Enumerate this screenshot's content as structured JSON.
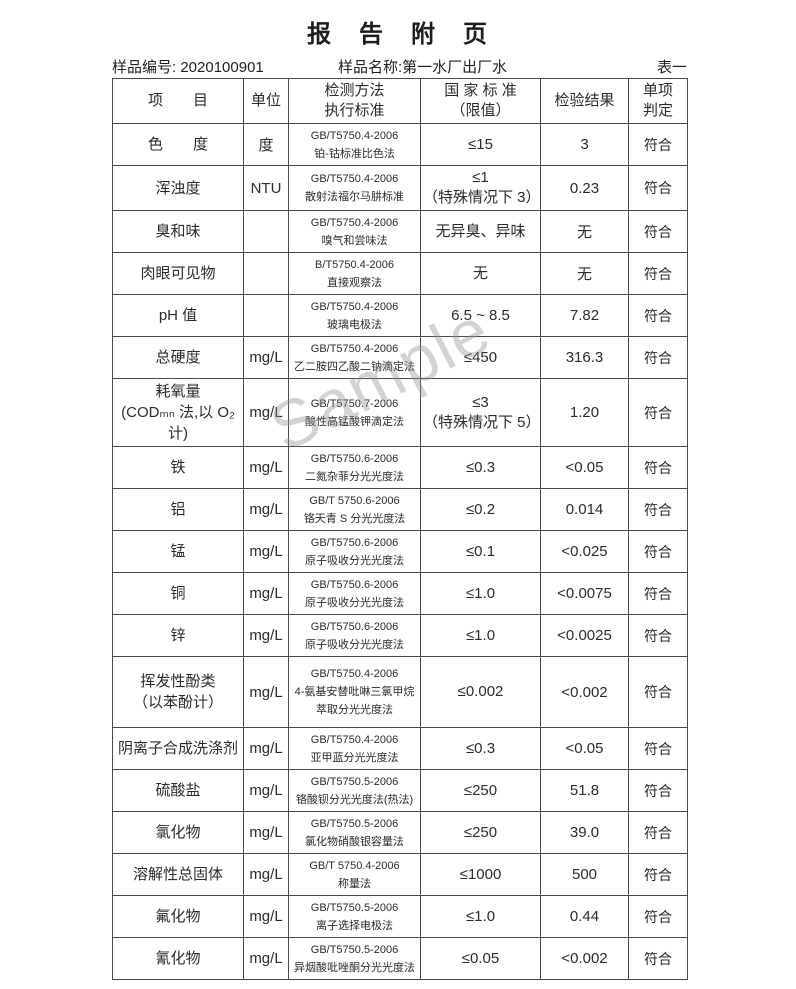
{
  "page": {
    "title": "报　告　附　页",
    "sample_no_label": "样品编号:",
    "sample_no": "2020100901",
    "sample_name_label": "样品名称:",
    "sample_name": "第一水厂出厂水",
    "table_label": "表一",
    "watermark": "Sample"
  },
  "table": {
    "headers": {
      "item": "项　　目",
      "unit": "单位",
      "method": [
        "检测方法",
        "执行标准"
      ],
      "standard": [
        "国 家 标 准",
        "（限值）"
      ],
      "result": "检验结果",
      "judgment": [
        "单项",
        "判定"
      ]
    },
    "rows": [
      {
        "item": [
          "色　　度"
        ],
        "unit": "度",
        "method": [
          "GB/T5750.4-2006",
          "铂-钴标准比色法"
        ],
        "standard": [
          "≤15"
        ],
        "result": "3",
        "judgment": "符合"
      },
      {
        "item": [
          "浑浊度"
        ],
        "unit": "NTU",
        "method": [
          "GB/T5750.4-2006",
          "散射法福尔马肼标准"
        ],
        "standard": [
          "≤1",
          "（特殊情况下 3）"
        ],
        "result": "0.23",
        "judgment": "符合"
      },
      {
        "item": [
          "臭和味"
        ],
        "unit": "",
        "method": [
          "GB/T5750.4-2006",
          "嗅气和尝味法"
        ],
        "standard": [
          "无异臭、异味"
        ],
        "result": "无",
        "judgment": "符合"
      },
      {
        "item": [
          "肉眼可见物"
        ],
        "unit": "",
        "method": [
          "B/T5750.4-2006",
          "直接观察法"
        ],
        "standard": [
          "无"
        ],
        "result": "无",
        "judgment": "符合"
      },
      {
        "item": [
          "pH 值"
        ],
        "unit": "",
        "method": [
          "GB/T5750.4-2006",
          "玻璃电极法"
        ],
        "standard": [
          "6.5 ~ 8.5"
        ],
        "result": "7.82",
        "judgment": "符合"
      },
      {
        "item": [
          "总硬度"
        ],
        "unit": "mg/L",
        "method": [
          "GB/T5750.4-2006",
          "乙二胺四乙酸二钠滴定法"
        ],
        "standard": [
          "≤450"
        ],
        "result": "316.3",
        "judgment": "符合"
      },
      {
        "item": [
          "耗氧量",
          "(CODₘₙ 法,以 O₂计)"
        ],
        "unit": "mg/L",
        "method": [
          "GB/T5750.7-2006",
          "酸性高锰酸钾滴定法"
        ],
        "standard": [
          "≤3",
          "（特殊情况下 5）"
        ],
        "result": "1.20",
        "judgment": "符合"
      },
      {
        "item": [
          "铁"
        ],
        "unit": "mg/L",
        "method": [
          "GB/T5750.6-2006",
          "二氮杂菲分光光度法"
        ],
        "standard": [
          "≤0.3"
        ],
        "result": "<0.05",
        "judgment": "符合"
      },
      {
        "item": [
          "铝"
        ],
        "unit": "mg/L",
        "method": [
          "GB/T 5750.6-2006",
          "铬天青 S 分光光度法"
        ],
        "standard": [
          "≤0.2"
        ],
        "result": "0.014",
        "judgment": "符合"
      },
      {
        "item": [
          "锰"
        ],
        "unit": "mg/L",
        "method": [
          "GB/T5750.6-2006",
          "原子吸收分光光度法"
        ],
        "standard": [
          "≤0.1"
        ],
        "result": "<0.025",
        "judgment": "符合"
      },
      {
        "item": [
          "铜"
        ],
        "unit": "mg/L",
        "method": [
          "GB/T5750.6-2006",
          "原子吸收分光光度法"
        ],
        "standard": [
          "≤1.0"
        ],
        "result": "<0.0075",
        "judgment": "符合"
      },
      {
        "item": [
          "锌"
        ],
        "unit": "mg/L",
        "method": [
          "GB/T5750.6-2006",
          "原子吸收分光光度法"
        ],
        "standard": [
          "≤1.0"
        ],
        "result": "<0.0025",
        "judgment": "符合"
      },
      {
        "item": [
          "挥发性酚类",
          "（以苯酚计）"
        ],
        "unit": "mg/L",
        "method": [
          "GB/T5750.4-2006",
          "4-氨基安替吡啉三氯甲烷",
          "萃取分光光度法"
        ],
        "standard": [
          "≤0.002"
        ],
        "result": "<0.002",
        "judgment": "符合"
      },
      {
        "item": [
          "阴离子合成洗涤剂"
        ],
        "unit": "mg/L",
        "method": [
          "GB/T5750.4-2006",
          "亚甲蓝分光光度法"
        ],
        "standard": [
          "≤0.3"
        ],
        "result": "<0.05",
        "judgment": "符合"
      },
      {
        "item": [
          "硫酸盐"
        ],
        "unit": "mg/L",
        "method": [
          "GB/T5750.5-2006",
          "铬酸钡分光光度法(热法)"
        ],
        "standard": [
          "≤250"
        ],
        "result": "51.8",
        "judgment": "符合"
      },
      {
        "item": [
          "氯化物"
        ],
        "unit": "mg/L",
        "method": [
          "GB/T5750.5-2006",
          "氯化物硝酸银容量法"
        ],
        "standard": [
          "≤250"
        ],
        "result": "39.0",
        "judgment": "符合"
      },
      {
        "item": [
          "溶解性总固体"
        ],
        "unit": "mg/L",
        "method": [
          "GB/T 5750.4-2006",
          "称量法"
        ],
        "standard": [
          "≤1000"
        ],
        "result": "500",
        "judgment": "符合"
      },
      {
        "item": [
          "氟化物"
        ],
        "unit": "mg/L",
        "method": [
          "GB/T5750.5-2006",
          "离子选择电极法"
        ],
        "standard": [
          "≤1.0"
        ],
        "result": "0.44",
        "judgment": "符合"
      },
      {
        "item": [
          "氰化物"
        ],
        "unit": "mg/L",
        "method": [
          "GB/T5750.5-2006",
          "异烟酸吡唑酮分光光度法"
        ],
        "standard": [
          "≤0.05"
        ],
        "result": "<0.002",
        "judgment": "符合"
      }
    ]
  }
}
